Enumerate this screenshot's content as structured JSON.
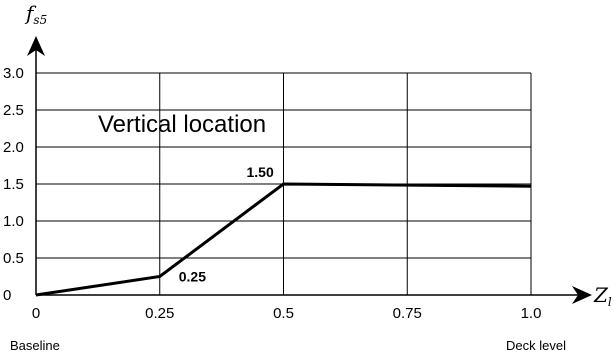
{
  "chart_data": {
    "type": "line",
    "ylabel": {
      "main": "f",
      "sub": "s5"
    },
    "xlabel": {
      "main": "Z",
      "sub": "l"
    },
    "annotation": "Vertical location",
    "xlim": [
      0,
      1.0
    ],
    "ylim": [
      0,
      3.0
    ],
    "x_ticks": [
      0,
      0.25,
      0.5,
      0.75,
      1.0
    ],
    "x_tick_labels": [
      "0",
      "0.25",
      "0.5",
      "0.75",
      "1.0"
    ],
    "y_ticks": [
      0,
      0.5,
      1.0,
      1.5,
      2.0,
      2.5,
      3.0
    ],
    "y_tick_labels": [
      "0",
      "0.5",
      "1.0",
      "1.5",
      "2.0",
      "2.5",
      "3.0"
    ],
    "x_end_labels": {
      "left": "Baseline",
      "right": "Deck level"
    },
    "grid": true,
    "series": [
      {
        "x": [
          0,
          0.25,
          0.5,
          1.0
        ],
        "y": [
          0,
          0.25,
          1.5,
          1.47
        ]
      }
    ],
    "data_labels": [
      {
        "x": 0.25,
        "y": 0.25,
        "text": "0.25"
      },
      {
        "x": 0.5,
        "y": 1.5,
        "text": "1.50"
      }
    ]
  }
}
